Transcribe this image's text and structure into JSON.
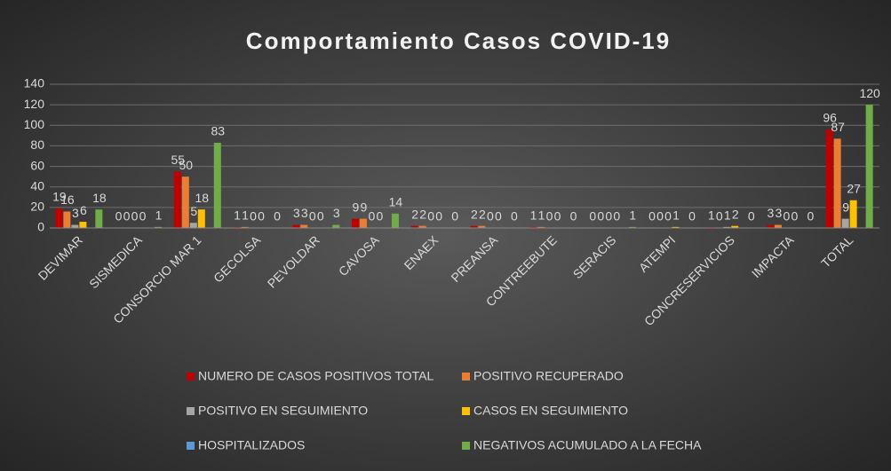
{
  "chart_data": {
    "type": "bar",
    "title": "Comportamiento Casos COVID-19",
    "categories": [
      "DEVIMAR",
      "SISMEDICA",
      "CONSORCIO MAR 1",
      "GECOLSA",
      "PEVOLDAR",
      "CAVOSA",
      "ENAEX",
      "PREANSA",
      "CONTREEBUTE",
      "SERACIS",
      "ATEMPI",
      "CONCRESERVICIOS",
      "IMPACTA",
      "TOTAL"
    ],
    "series": [
      {
        "name": "NUMERO DE CASOS POSITIVOS TOTAL",
        "color": "#c00000",
        "show_labels": true,
        "values": [
          19,
          0,
          55,
          1,
          3,
          9,
          2,
          2,
          1,
          0,
          0,
          1,
          3,
          96
        ]
      },
      {
        "name": "POSITIVO RECUPERADO",
        "color": "#ed7d31",
        "show_labels": true,
        "values": [
          16,
          0,
          50,
          1,
          3,
          9,
          2,
          2,
          1,
          0,
          0,
          0,
          3,
          87
        ]
      },
      {
        "name": "POSITIVO EN SEGUIMIENTO",
        "color": "#a5a5a5",
        "show_labels": true,
        "values": [
          3,
          0,
          5,
          0,
          0,
          0,
          0,
          0,
          0,
          0,
          0,
          1,
          0,
          9
        ]
      },
      {
        "name": "CASOS EN SEGUIMIENTO",
        "color": "#ffc000",
        "show_labels": true,
        "values": [
          6,
          0,
          18,
          0,
          0,
          0,
          0,
          0,
          0,
          0,
          1,
          2,
          0,
          27
        ]
      },
      {
        "name": "HOSPITALIZADOS",
        "color": "#5b9bd5",
        "show_labels": false,
        "values": [
          0,
          0,
          0,
          0,
          0,
          0,
          0,
          0,
          0,
          0,
          0,
          0,
          0,
          0
        ]
      },
      {
        "name": "NEGATIVOS ACUMULADO A LA FECHA",
        "color": "#70ad47",
        "show_labels": true,
        "values": [
          18,
          1,
          83,
          0,
          3,
          14,
          0,
          0,
          0,
          1,
          0,
          0,
          0,
          120
        ]
      }
    ],
    "ylim": [
      0,
      140
    ],
    "yticks": [
      0,
      20,
      40,
      60,
      80,
      100,
      120,
      140
    ],
    "grid": true,
    "legend": "bottom"
  }
}
